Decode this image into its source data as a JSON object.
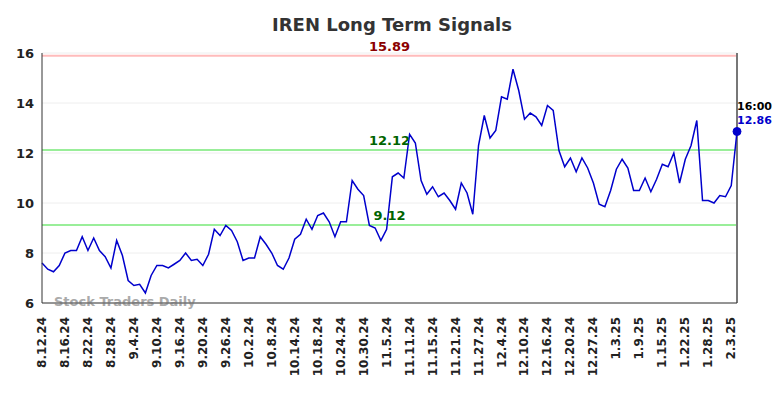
{
  "chart_data": {
    "type": "line",
    "title": "IREN Long Term Signals",
    "watermark": "Stock Traders Daily",
    "time_label": "16:00",
    "categories": [
      "8.12.24",
      null,
      null,
      null,
      "8.16.24",
      null,
      null,
      null,
      "8.22.24",
      null,
      null,
      null,
      "8.28.24",
      null,
      null,
      null,
      "9.4.24",
      null,
      null,
      null,
      "9.10.24",
      null,
      null,
      null,
      "9.16.24",
      null,
      null,
      null,
      "9.20.24",
      null,
      null,
      null,
      "9.26.24",
      null,
      null,
      null,
      "10.2.24",
      null,
      null,
      null,
      "10.8.24",
      null,
      null,
      null,
      "10.14.24",
      null,
      null,
      null,
      "10.18.24",
      null,
      null,
      null,
      "10.24.24",
      null,
      null,
      null,
      "10.30.24",
      null,
      null,
      null,
      "11.5.24",
      null,
      null,
      null,
      "11.11.24",
      null,
      null,
      null,
      "11.15.24",
      null,
      null,
      null,
      "11.21.24",
      null,
      null,
      null,
      "11.27.24",
      null,
      null,
      null,
      "12.4.24",
      null,
      null,
      null,
      "12.10.24",
      null,
      null,
      null,
      "12.16.24",
      null,
      null,
      null,
      "12.20.24",
      null,
      null,
      null,
      "12.27.24",
      null,
      null,
      null,
      "1.3.25",
      null,
      null,
      null,
      "1.9.25",
      null,
      null,
      null,
      "1.15.25",
      null,
      null,
      null,
      "1.22.25",
      null,
      null,
      null,
      "1.28.25",
      null,
      null,
      null,
      "2.3.25",
      null
    ],
    "values": [
      7.6,
      7.35,
      7.25,
      7.5,
      8.0,
      8.1,
      8.1,
      8.65,
      8.1,
      8.6,
      8.1,
      7.85,
      7.4,
      8.5,
      7.9,
      6.9,
      6.7,
      6.75,
      6.4,
      7.1,
      7.5,
      7.5,
      7.4,
      7.55,
      7.7,
      8.0,
      7.7,
      7.75,
      7.5,
      7.95,
      8.95,
      8.7,
      9.1,
      8.9,
      8.45,
      7.7,
      7.8,
      7.8,
      8.65,
      8.35,
      8.0,
      7.5,
      7.35,
      7.8,
      8.55,
      8.75,
      9.35,
      8.95,
      9.5,
      9.6,
      9.25,
      8.65,
      9.25,
      9.25,
      10.9,
      10.55,
      10.3,
      9.1,
      9.0,
      8.5,
      8.95,
      11.05,
      11.2,
      11.0,
      12.75,
      12.4,
      10.9,
      10.35,
      10.65,
      10.25,
      10.4,
      10.1,
      9.75,
      10.8,
      10.4,
      9.55,
      12.3,
      13.5,
      12.6,
      12.9,
      14.25,
      14.15,
      15.35,
      14.5,
      13.35,
      13.6,
      13.45,
      13.1,
      13.9,
      13.7,
      12.1,
      11.45,
      11.8,
      11.25,
      11.8,
      11.4,
      10.8,
      9.95,
      9.85,
      10.5,
      11.35,
      11.75,
      11.4,
      10.5,
      10.5,
      11.0,
      10.45,
      10.95,
      11.55,
      11.45,
      12.0,
      10.8,
      11.75,
      12.3,
      13.3,
      10.1,
      10.1,
      10.0,
      10.3,
      10.25,
      10.7,
      12.86
    ],
    "color": "#0000cc",
    "levels": [
      {
        "value": 15.89,
        "color": "#8b0000"
      },
      {
        "value": 12.12,
        "color": "#006400"
      },
      {
        "value": 9.12,
        "color": "#006400"
      }
    ],
    "ylim": [
      6,
      16
    ],
    "yticks": [
      6,
      8,
      10,
      12,
      14,
      16
    ],
    "grid": true
  }
}
